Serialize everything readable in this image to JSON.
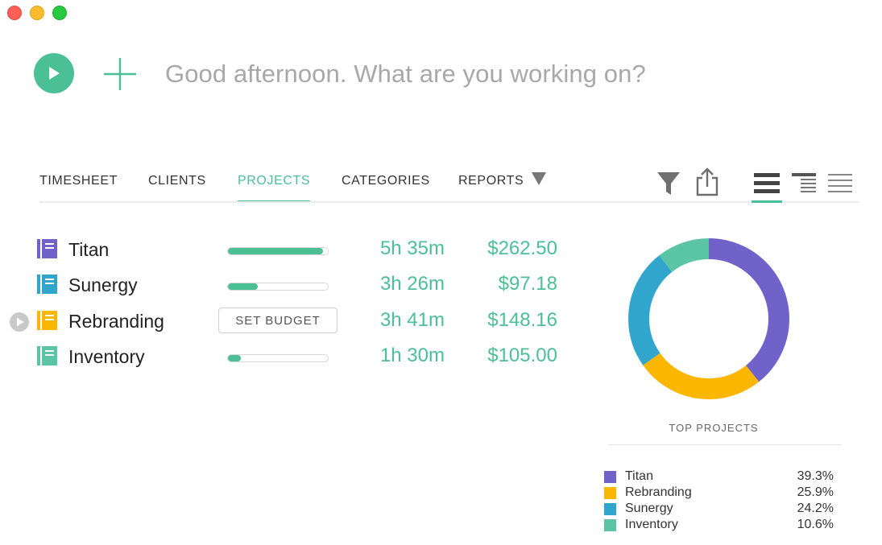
{
  "window": {
    "controls": [
      "close",
      "minimize",
      "maximize"
    ]
  },
  "header": {
    "prompt": "Good afternoon. What are you working on?",
    "play_icon": "play-icon",
    "add_icon": "plus-icon"
  },
  "tabs": [
    {
      "id": "timesheet",
      "label": "TIMESHEET",
      "active": false
    },
    {
      "id": "clients",
      "label": "CLIENTS",
      "active": false
    },
    {
      "id": "projects",
      "label": "PROJECTS",
      "active": true
    },
    {
      "id": "categories",
      "label": "CATEGORIES",
      "active": false
    },
    {
      "id": "reports",
      "label": "REPORTS",
      "active": false
    }
  ],
  "toolbar": {
    "icons": [
      "filter-icon",
      "share-icon",
      "view-list-large-icon",
      "view-list-medium-icon",
      "view-list-compact-icon"
    ],
    "active_view": "view-list-large"
  },
  "projects": [
    {
      "name": "Titan",
      "color": "#7062c9",
      "budget_progress": 0.95,
      "has_budget": true,
      "time": "5h 35m",
      "amount": "$262.50"
    },
    {
      "name": "Sunergy",
      "color": "#31a6cd",
      "budget_progress": 0.3,
      "has_budget": true,
      "time": "3h 26m",
      "amount": "$97.18"
    },
    {
      "name": "Rebranding",
      "color": "#fbb600",
      "budget_progress": null,
      "has_budget": false,
      "set_budget_label": "SET BUDGET",
      "time": "3h 41m",
      "amount": "$148.16"
    },
    {
      "name": "Inventory",
      "color": "#5bc4a2",
      "budget_progress": 0.13,
      "has_budget": true,
      "time": "1h 30m",
      "amount": "$105.00"
    }
  ],
  "chart_data": {
    "type": "pie",
    "title": "TOP PROJECTS",
    "donut": true,
    "slices": [
      {
        "name": "Titan",
        "value": 39.3,
        "label": "39.3%",
        "color": "#7062c9"
      },
      {
        "name": "Rebranding",
        "value": 25.9,
        "label": "25.9%",
        "color": "#fbb600"
      },
      {
        "name": "Sunergy",
        "value": 24.2,
        "label": "24.2%",
        "color": "#31a6cd"
      },
      {
        "name": "Inventory",
        "value": 10.6,
        "label": "10.6%",
        "color": "#5bc4a2"
      }
    ]
  }
}
